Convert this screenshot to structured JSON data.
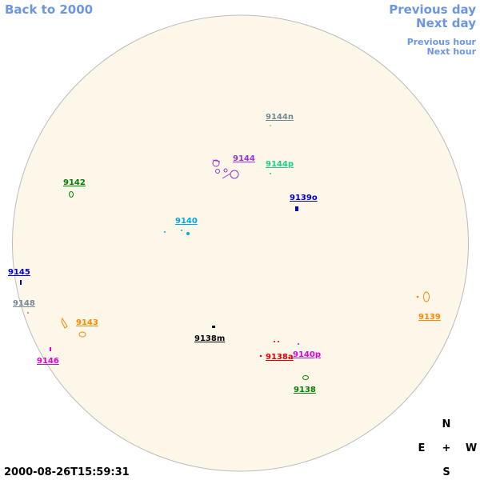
{
  "navigation": {
    "back": "Back to 2000",
    "previous_day": "Previous day",
    "next_day": "Next day",
    "previous_hour": "Previous hour",
    "next_hour": "Next hour"
  },
  "regions": [
    "9144n",
    "9144",
    "9144p",
    "9142",
    "9139o",
    "9140",
    "9145",
    "9148",
    "9143",
    "9139",
    "9146",
    "9138m",
    "9138a",
    "9140p",
    "9138"
  ],
  "compass": {
    "north": "N",
    "east": "E",
    "center": "+",
    "west": "W",
    "south": "S"
  },
  "timestamp": "2000-08-26T15:59:31"
}
